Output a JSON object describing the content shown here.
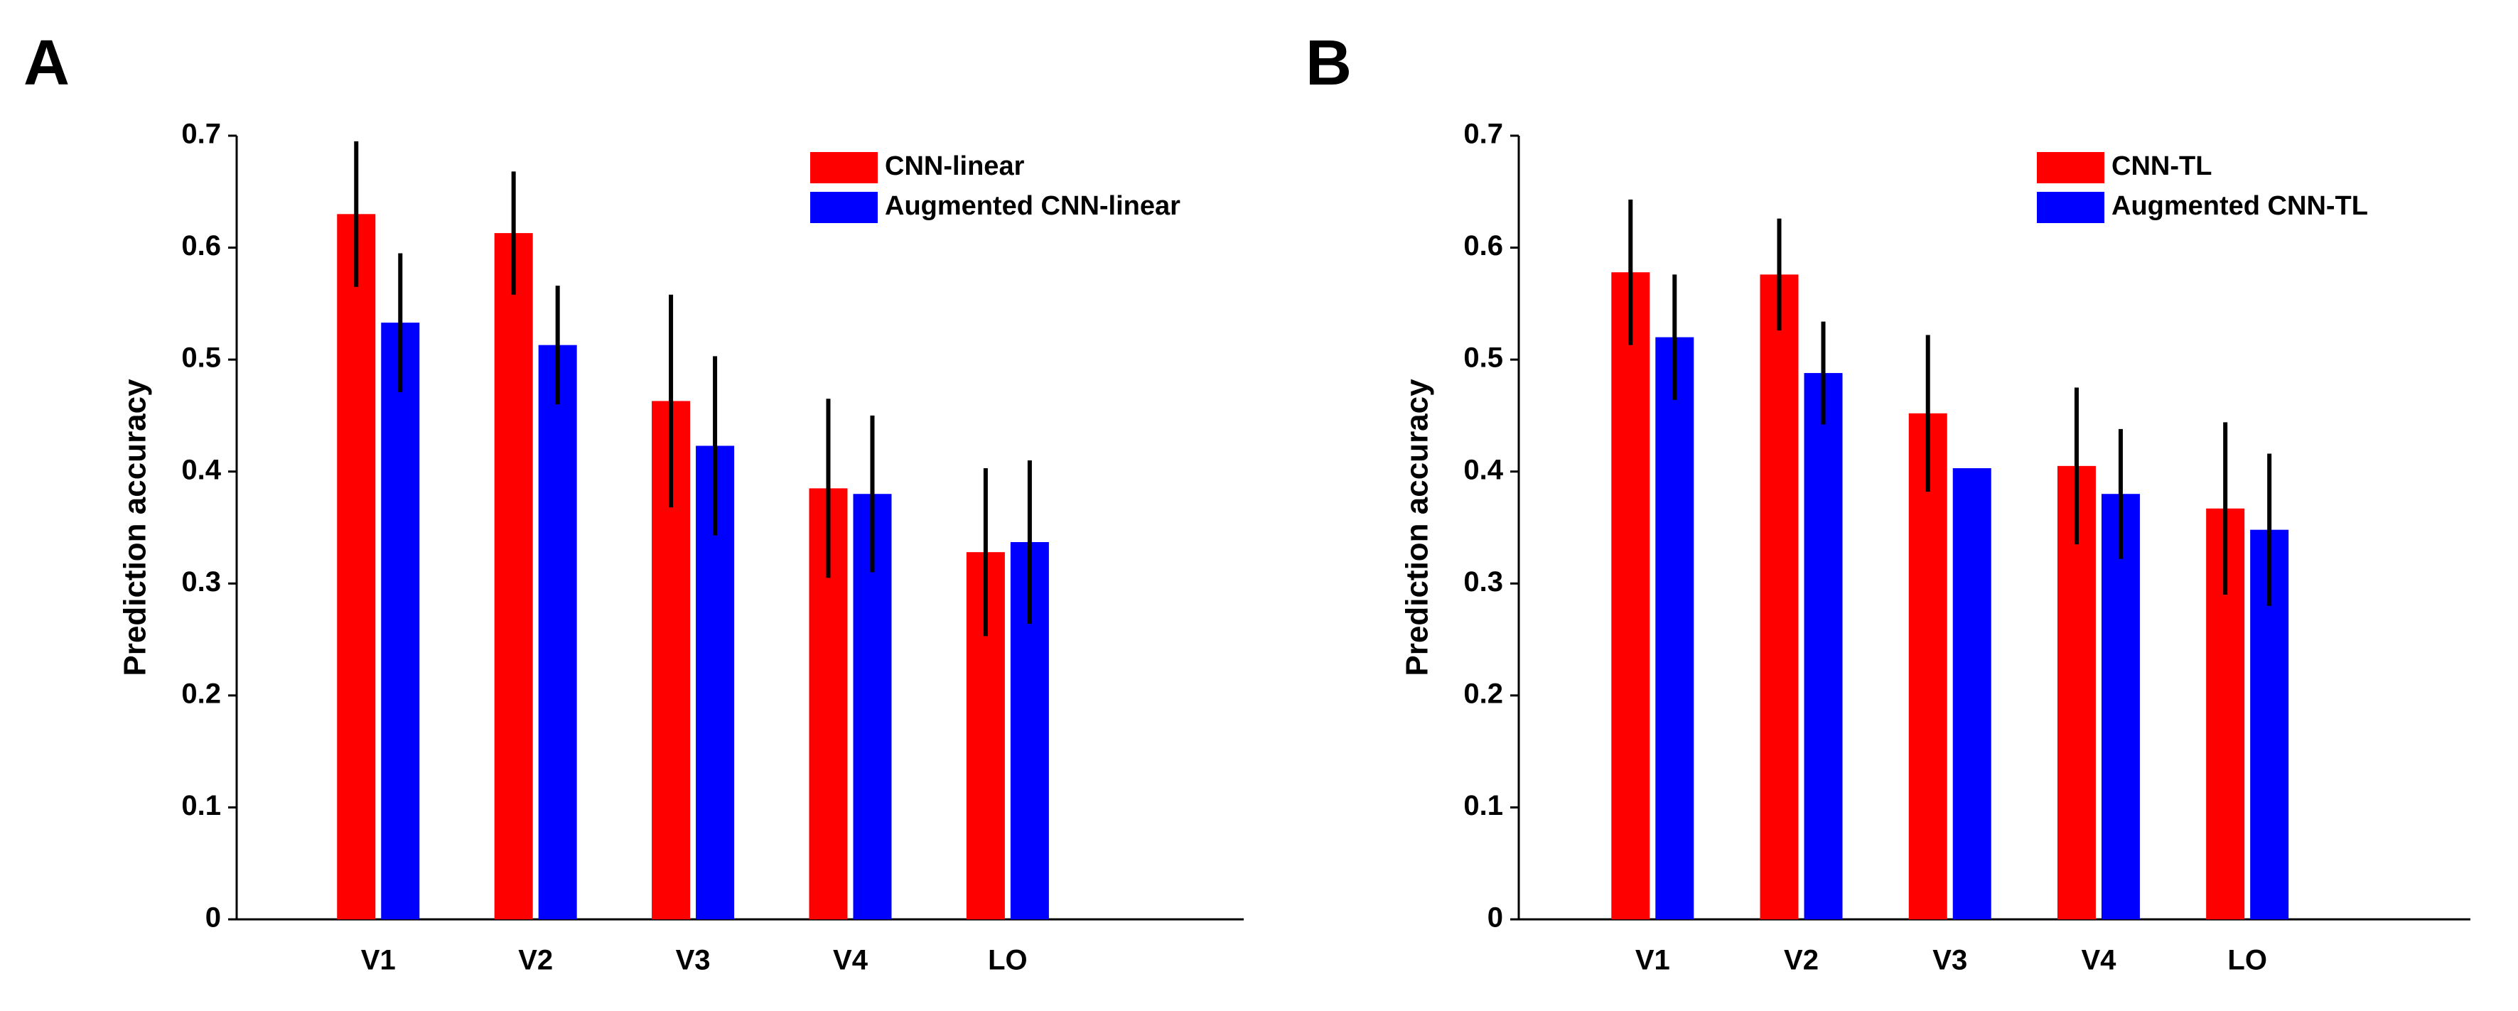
{
  "chart_data": [
    {
      "type": "bar",
      "label": "A",
      "ylabel": "Prediction accuracy",
      "categories": [
        "V1",
        "V2",
        "V3",
        "V4",
        "LO"
      ],
      "series": [
        {
          "name": "CNN-linear",
          "color": "#ff0000",
          "values": [
            0.63,
            0.613,
            0.463,
            0.385,
            0.328
          ],
          "errors": [
            0.065,
            0.055,
            0.095,
            0.08,
            0.075
          ]
        },
        {
          "name": "Augmented CNN-linear",
          "color": "#0000ff",
          "values": [
            0.533,
            0.513,
            0.423,
            0.38,
            0.337
          ],
          "errors": [
            0.062,
            0.053,
            0.08,
            0.07,
            0.073
          ]
        }
      ],
      "ylim": [
        0,
        0.7
      ],
      "yticks": [
        0,
        0.1,
        0.2,
        0.3,
        0.4,
        0.5,
        0.6,
        0.7
      ],
      "legend": "upper right"
    },
    {
      "type": "bar",
      "label": "B",
      "ylabel": "Prediction accuracy",
      "categories": [
        "V1",
        "V2",
        "V3",
        "V4",
        "LO"
      ],
      "series": [
        {
          "name": "CNN-TL",
          "color": "#ff0000",
          "values": [
            0.578,
            0.576,
            0.452,
            0.405,
            0.367
          ],
          "errors": [
            0.065,
            0.05,
            0.07,
            0.07,
            0.077
          ]
        },
        {
          "name": "Augmented CNN-TL",
          "color": "#0000ff",
          "values": [
            0.52,
            0.488,
            0.403,
            0.38,
            0.348
          ],
          "errors": [
            0.056,
            0.046,
            0,
            0.058,
            0.068
          ]
        }
      ],
      "ylim": [
        0,
        0.7
      ],
      "yticks": [
        0,
        0.1,
        0.2,
        0.3,
        0.4,
        0.5,
        0.6,
        0.7
      ],
      "legend": "upper right"
    }
  ]
}
